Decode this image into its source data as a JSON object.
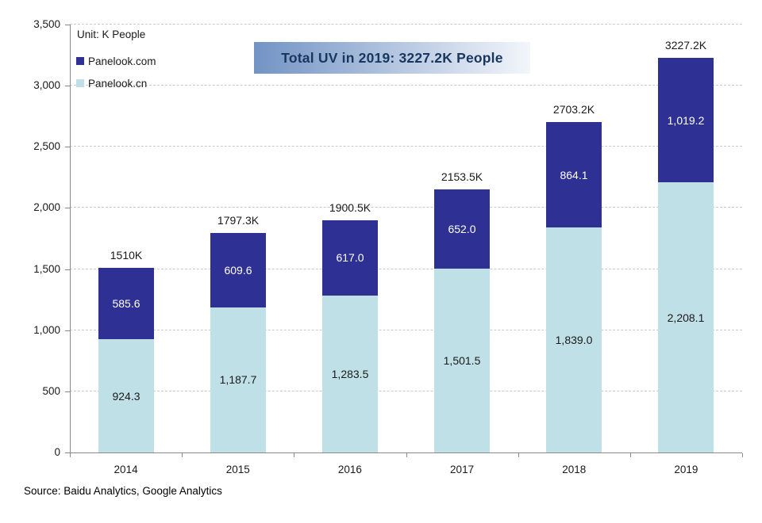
{
  "title_banner": {
    "text": "Total UV in 2019: 3227.2K People",
    "text_color": "#17375e",
    "bg_gradient_from": "#7293c4",
    "bg_gradient_to": "#f3f6fb"
  },
  "unit_label": "Unit: K People",
  "source_note": "Source: Baidu Analytics, Google Analytics",
  "chart_data": {
    "type": "bar",
    "stacked": true,
    "title": "Total UV in 2019: 3227.2K People",
    "unit": "K People",
    "categories": [
      "2014",
      "2015",
      "2016",
      "2017",
      "2018",
      "2019"
    ],
    "series": [
      {
        "name": "Panelook.cn",
        "color": "#bfe0e6",
        "label_color": "#1a1a1a",
        "values": [
          924.3,
          1187.7,
          1283.5,
          1501.5,
          1839.0,
          2208.1
        ],
        "labels": [
          "924.3",
          "1,187.7",
          "1,283.5",
          "1,501.5",
          "1,839.0",
          "2,208.1"
        ]
      },
      {
        "name": "Panelook.com",
        "color": "#2e3193",
        "label_color": "#ffffff",
        "values": [
          585.6,
          609.6,
          617.0,
          652.0,
          864.1,
          1019.2
        ],
        "labels": [
          "585.6",
          "609.6",
          "617.0",
          "652.0",
          "864.1",
          "1,019.2"
        ]
      }
    ],
    "totals": {
      "values": [
        1510,
        1797.3,
        1900.5,
        2153.5,
        2703.2,
        3227.2
      ],
      "labels": [
        "1510K",
        "1797.3K",
        "1900.5K",
        "2153.5K",
        "2703.2K",
        "3227.2K"
      ]
    },
    "y_axis": {
      "min": 0,
      "max": 3500,
      "tick_step": 500,
      "tick_labels": [
        "0",
        "500",
        "1,000",
        "1,500",
        "2,000",
        "2,500",
        "3,000",
        "3,500"
      ]
    },
    "legend": {
      "position": "top-left",
      "order": [
        "Panelook.com",
        "Panelook.cn"
      ]
    },
    "grid": "horizontal-dashed"
  }
}
